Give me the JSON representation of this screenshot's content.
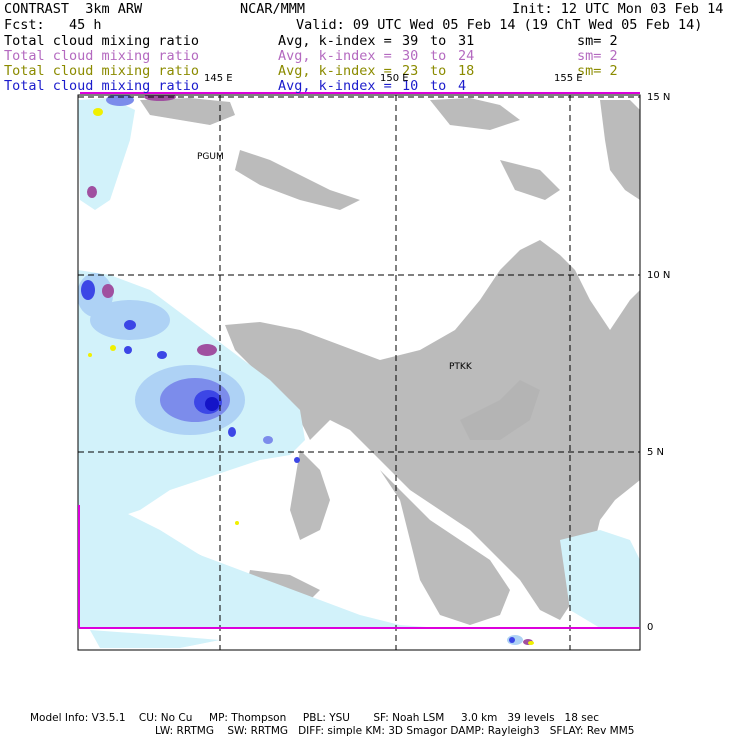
{
  "header": {
    "model": "CONTRAST  3km ARW",
    "center": "NCAR/MMM",
    "init": "Init: 12 UTC Mon 03 Feb 14",
    "fcst": "Fcst:   45 h",
    "valid": "Valid: 09 UTC Wed 05 Feb 14 (19 ChT Wed 05 Feb 14)"
  },
  "fields": [
    {
      "name": "Total cloud mixing ratio",
      "avg": "Avg, k-index =",
      "from": "39",
      "to_word": "to",
      "to": "31",
      "sm": "sm= 2",
      "color": "#000000"
    },
    {
      "name": "Total cloud mixing ratio",
      "avg": "Avg, k-index =",
      "from": "30",
      "to_word": "to",
      "to": "24",
      "sm": "sm= 2",
      "color": "#b46ac0"
    },
    {
      "name": "Total cloud mixing ratio",
      "avg": "Avg, k-index =",
      "from": "23",
      "to_word": "to",
      "to": "18",
      "sm": "sm= 2",
      "color": "#8b8b00"
    },
    {
      "name": "Total cloud mixing ratio",
      "avg": "Avg, k-index =",
      "from": "10",
      "to_word": "to",
      "to": "4",
      "sm": "",
      "color": "#1c1ccc"
    }
  ],
  "map": {
    "lon_labels": [
      "145 E",
      "150 E",
      "155 E"
    ],
    "lat_labels": [
      "15 N",
      "10 N",
      "5 N",
      "0"
    ],
    "stations": [
      "PGUM",
      "PTKK"
    ],
    "colors": {
      "gray_cloud": "#b4b4b4",
      "light_cyan": "#d2f2fa",
      "pale_blue": "#aed2f5",
      "mid_blue": "#7c8ceb",
      "deep_blue": "#3c46e6",
      "dark_blue": "#1414c8",
      "magenta_line": "#dc00dc",
      "purple_cloud": "#a050a0",
      "yellow": "#f0f000"
    }
  },
  "footer": {
    "line1": "Model Info: V3.5.1    CU: No Cu     MP: Thompson     PBL: YSU       SF: Noah LSM     3.0 km   39 levels   18 sec",
    "line2": "LW: RRTMG    SW: RRTMG   DIFF: simple KM: 3D Smagor DAMP: Rayleigh3   SFLAY: Rev MM5"
  }
}
